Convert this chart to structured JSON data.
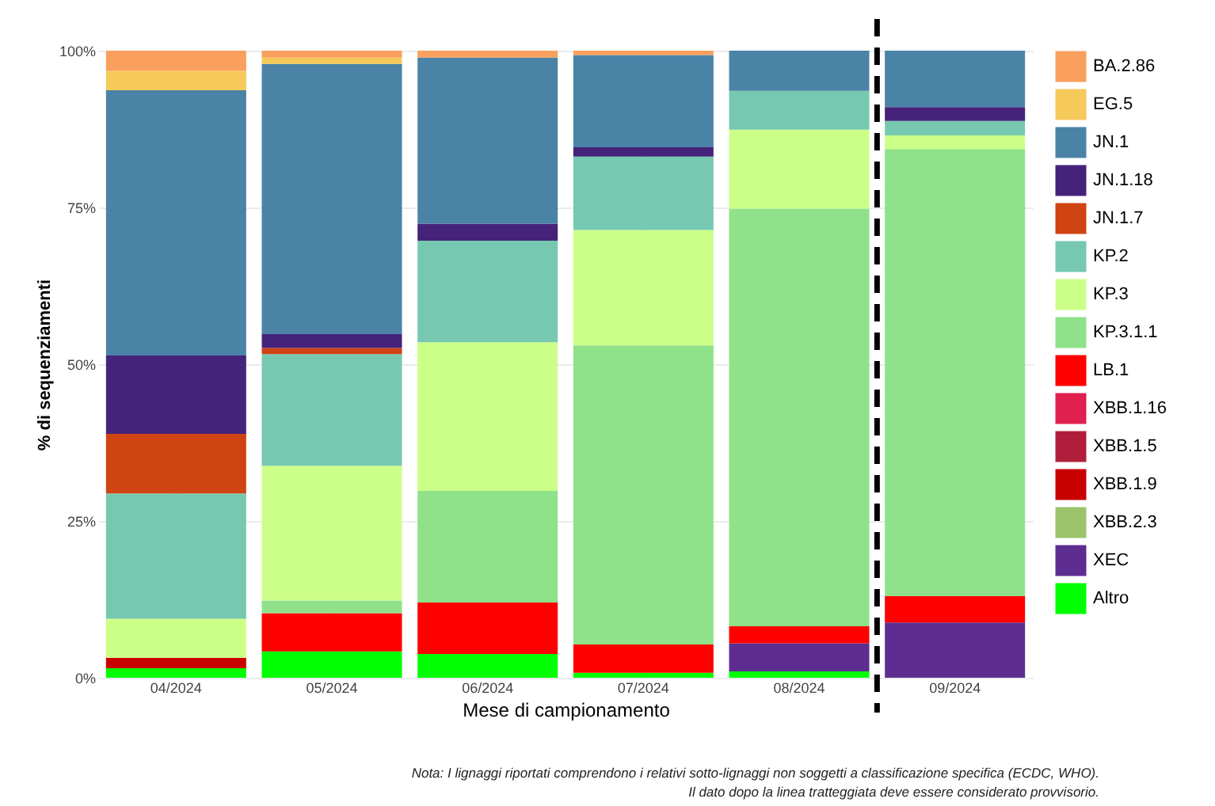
{
  "chart_data": {
    "type": "bar",
    "stacked": true,
    "xlabel": "Mese di campionamento",
    "ylabel": "% di sequenziamenti",
    "categories": [
      "04/2024",
      "05/2024",
      "06/2024",
      "07/2024",
      "08/2024",
      "09/2024"
    ],
    "series": [
      {
        "name": "Altro",
        "color": "#00ff00",
        "values": [
          1.5,
          4.2,
          3.8,
          0.8,
          1.0,
          0
        ]
      },
      {
        "name": "XEC",
        "color": "#5e2d91",
        "values": [
          0,
          0,
          0,
          0,
          4.5,
          8.8
        ]
      },
      {
        "name": "XBB.2.3",
        "color": "#9bc46a",
        "values": [
          0,
          0,
          0,
          0,
          0,
          0
        ]
      },
      {
        "name": "XBB.1.9",
        "color": "#c80000",
        "values": [
          1.7,
          0,
          0,
          0,
          0,
          0
        ]
      },
      {
        "name": "XBB.1.5",
        "color": "#b01e3c",
        "values": [
          0,
          0,
          0,
          0,
          0,
          0
        ]
      },
      {
        "name": "XBB.1.16",
        "color": "#e0204e",
        "values": [
          0,
          0,
          0,
          0,
          0,
          0
        ]
      },
      {
        "name": "LB.1",
        "color": "#ff0000",
        "values": [
          0,
          6.1,
          8.2,
          4.5,
          2.7,
          4.2
        ]
      },
      {
        "name": "KP.3.1.1",
        "color": "#8fe28a",
        "values": [
          0,
          2.0,
          17.8,
          47.7,
          66.6,
          71.3
        ]
      },
      {
        "name": "KP.3",
        "color": "#ccff88",
        "values": [
          6.2,
          21.5,
          23.7,
          18.4,
          12.6,
          2.2
        ]
      },
      {
        "name": "KP.2",
        "color": "#76c8b1",
        "values": [
          20.0,
          17.8,
          16.2,
          11.7,
          6.2,
          2.3
        ]
      },
      {
        "name": "JN.1.7",
        "color": "#d04312",
        "values": [
          9.5,
          1.0,
          0,
          0,
          0,
          0
        ]
      },
      {
        "name": "JN.1.18",
        "color": "#46237a",
        "values": [
          12.5,
          2.2,
          2.7,
          1.5,
          0,
          2.2
        ]
      },
      {
        "name": "JN.1",
        "color": "#4a83a6",
        "values": [
          42.3,
          43.1,
          26.5,
          14.7,
          6.4,
          9.0
        ]
      },
      {
        "name": "EG.5",
        "color": "#f5c95a",
        "values": [
          3.1,
          1.0,
          0,
          0,
          0,
          0
        ]
      },
      {
        "name": "BA.2.86",
        "color": "#f9a05e",
        "values": [
          3.2,
          1.1,
          1.1,
          0.7,
          0,
          0
        ]
      }
    ],
    "ylim": [
      0,
      100
    ],
    "yticks": [
      {
        "value": 0,
        "label": "0%"
      },
      {
        "value": 25,
        "label": "25%"
      },
      {
        "value": 50,
        "label": "50%"
      },
      {
        "value": 75,
        "label": "75%"
      },
      {
        "value": 100,
        "label": "100%"
      }
    ],
    "grid": true,
    "legend": "right",
    "ref_lines": [
      {
        "axis": "x",
        "value": "09/2024",
        "color": "#000000",
        "line_style": "dashed"
      }
    ],
    "annotations": [
      "Nota: I lignaggi riportati comprendono i relativi sotto-lignaggi non soggetti a classificazione specifica (ECDC, WHO).",
      "Il dato dopo la linea tratteggiata deve essere considerato provvisorio."
    ]
  }
}
